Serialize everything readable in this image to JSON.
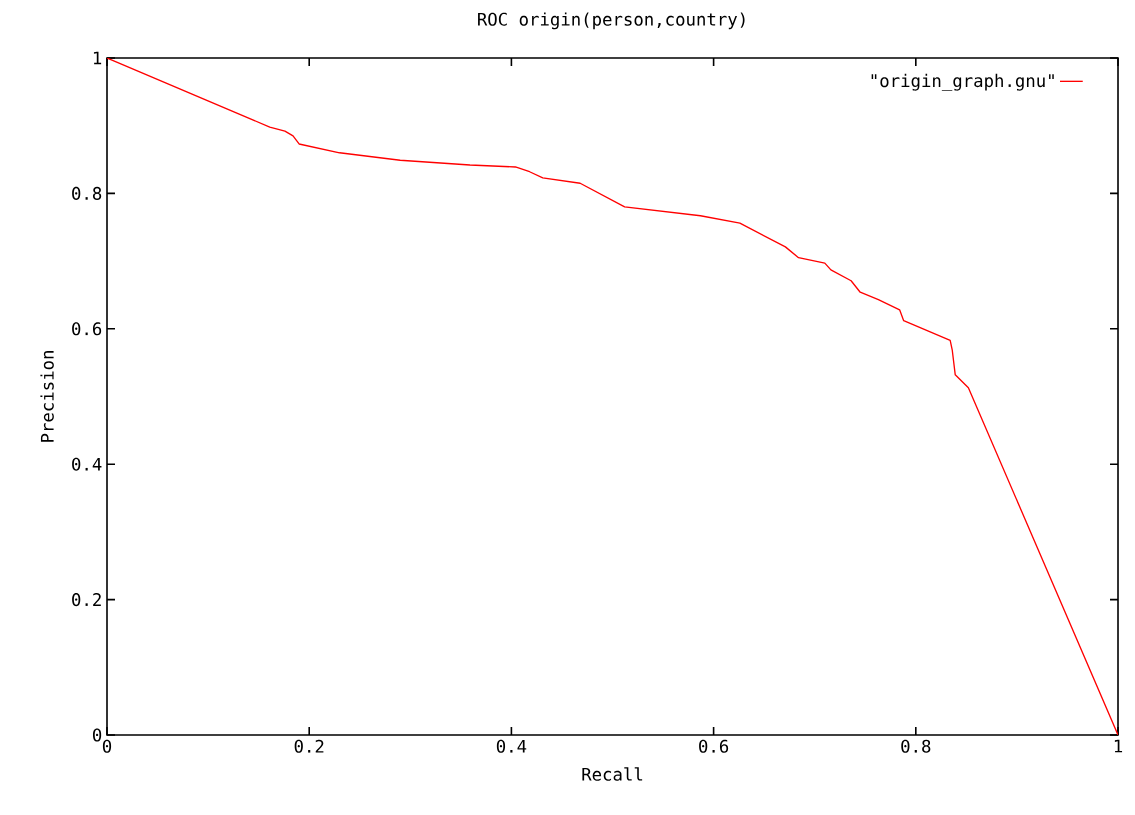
{
  "chart_data": {
    "type": "line",
    "title": "ROC origin(person,country)",
    "xlabel": "Recall",
    "ylabel": "Precision",
    "xlim": [
      0,
      1
    ],
    "ylim": [
      0,
      1
    ],
    "xticks": [
      0,
      0.2,
      0.4,
      0.6,
      0.8,
      1
    ],
    "yticks": [
      0,
      0.2,
      0.4,
      0.6,
      0.8,
      1
    ],
    "legend": "top right",
    "x": [
      0,
      0.161,
      0.176,
      0.184,
      0.19,
      0.23,
      0.29,
      0.359,
      0.404,
      0.418,
      0.431,
      0.468,
      0.512,
      0.587,
      0.626,
      0.671,
      0.684,
      0.71,
      0.716,
      0.736,
      0.745,
      0.763,
      0.784,
      0.788,
      0.834,
      0.836,
      0.839,
      0.852,
      1
    ],
    "series": [
      {
        "name": "\"origin_graph.gnu\"",
        "color": "#ff0000",
        "values": [
          1,
          0.898,
          0.892,
          0.885,
          0.873,
          0.86,
          0.849,
          0.842,
          0.839,
          0.832,
          0.823,
          0.815,
          0.78,
          0.767,
          0.756,
          0.721,
          0.705,
          0.697,
          0.687,
          0.671,
          0.654,
          0.643,
          0.628,
          0.612,
          0.583,
          0.569,
          0.532,
          0.513,
          0
        ]
      }
    ]
  }
}
